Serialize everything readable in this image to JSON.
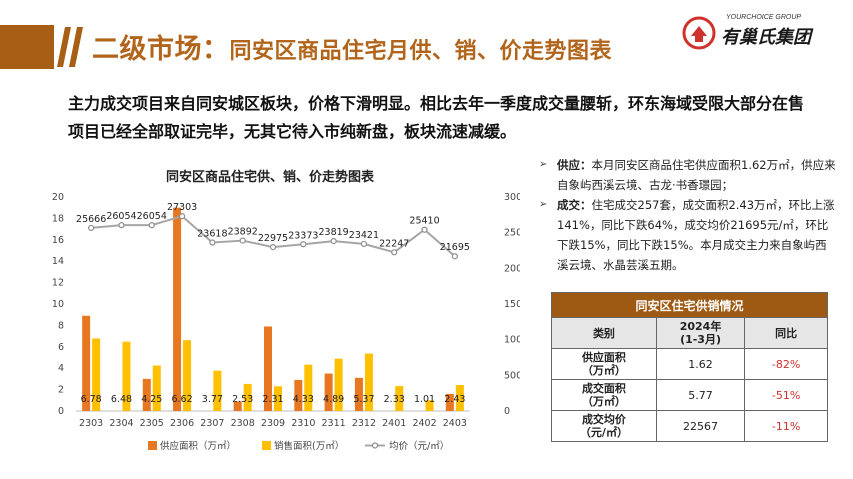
{
  "header": {
    "title_main": "二级市场：",
    "title_sub": "同安区商品住宅月供、销、价走势图表"
  },
  "logo": {
    "small": "YOURCHOICE GROUP",
    "name": "有巢氏集团"
  },
  "headline": "主力成交项目来自同安城区板块，价格下滑明显。相比去年一季度成交量腰斩，环东海域受限大部分在售项目已经全部取证完毕，无其它待入市纯新盘，板块流速减缓。",
  "chart_data": {
    "type": "bar",
    "title": "同安区商品住宅供、销、价走势图表",
    "categories": [
      "2303",
      "2304",
      "2305",
      "2306",
      "2307",
      "2308",
      "2309",
      "2310",
      "2311",
      "2312",
      "2401",
      "2402",
      "2403"
    ],
    "series": [
      {
        "name": "供应面积（万㎡）",
        "type": "bar",
        "axis": "left",
        "color": "#e87722",
        "values": [
          8.9,
          0,
          3.0,
          19.0,
          0,
          0.9,
          7.9,
          2.9,
          3.5,
          3.1,
          0,
          0,
          1.6
        ]
      },
      {
        "name": "销售面积(万㎡）",
        "type": "bar",
        "axis": "left",
        "color": "#ffc000",
        "values": [
          6.78,
          6.48,
          4.25,
          6.62,
          3.77,
          2.53,
          2.31,
          4.33,
          4.89,
          5.37,
          2.33,
          1.01,
          2.43
        ]
      },
      {
        "name": "均价（元/㎡）",
        "type": "line",
        "axis": "right",
        "color": "#a6a6a6",
        "values": [
          25666,
          26054,
          26054,
          27303,
          23618,
          23892,
          22975,
          23373,
          23819,
          23421,
          22247,
          25410,
          21695
        ]
      }
    ],
    "sales_labels": [
      "6.78",
      "6.48",
      "4.25",
      "6.62",
      "3.77",
      "2.53",
      "2.31",
      "4.33",
      "4.89",
      "5.37",
      "2.33",
      "1.01",
      "2.43"
    ],
    "price_labels": [
      "25666",
      "26054",
      "26054",
      "27303",
      "23618",
      "23892",
      "22975",
      "23373",
      "23819",
      "23421",
      "22247",
      "25410",
      "21695"
    ],
    "ylim_left": [
      0,
      20
    ],
    "yticks_left": [
      "0",
      "2",
      "4",
      "6",
      "8",
      "10",
      "12",
      "14",
      "16",
      "18",
      "20"
    ],
    "ylim_right": [
      0,
      30000
    ],
    "yticks_right": [
      "0",
      "5000",
      "10000",
      "15000",
      "20000",
      "25000",
      "30000"
    ],
    "legend_position": "bottom",
    "grid": false
  },
  "bullets": [
    {
      "keyword": "供应：",
      "text": "本月同安区商品住宅供应面积1.62万㎡，供应来自象屿西溪云境、古龙·书香璟园；"
    },
    {
      "keyword": "成交：",
      "text": "住宅成交257套，成交面积2.43万㎡，环比上涨141%，同比下跌64%，成交均价21695元/㎡，环比下跌15%，同比下跌15%。本月成交主力来自象屿西溪云境、水晶芸溪五期。"
    }
  ],
  "table": {
    "caption": "同安区住宅供销情况",
    "headers": [
      "类别",
      "2024年\n(1-3月)",
      "同比"
    ],
    "rows": [
      {
        "label": "供应面积\n（万㎡）",
        "value": "1.62",
        "yoy": "-82%"
      },
      {
        "label": "成交面积\n（万㎡）",
        "value": "5.77",
        "yoy": "-51%"
      },
      {
        "label": "成交均价\n（元/㎡）",
        "value": "22567",
        "yoy": "-11%"
      }
    ]
  },
  "colors": {
    "brand": "#a65f14",
    "accent": "#b2651a",
    "negative": "#d0312d"
  }
}
